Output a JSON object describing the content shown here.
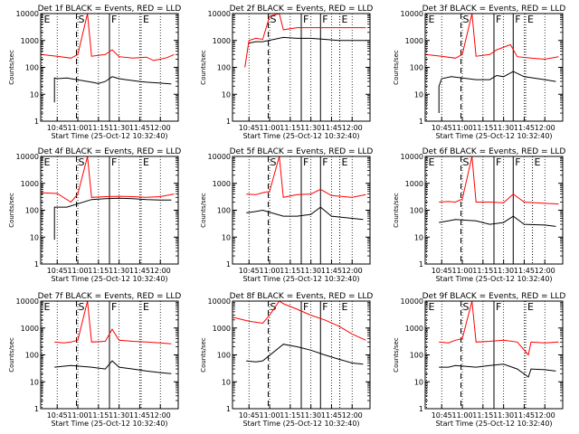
{
  "chart_data": [
    {
      "type": "line",
      "title": "Det 1f BLACK = Events, RED = LLD",
      "xlabel": "Start Time (25-Oct-12 10:32:40)",
      "ylabel": "Counts/sec",
      "yscale": "log",
      "ylim": [
        1,
        10000
      ],
      "xlim": [
        "10:33",
        "12:13"
      ],
      "xticks": [
        "10:45",
        "11:00",
        "11:15",
        "11:30",
        "11:45",
        "12:00"
      ],
      "yticks": [
        "1",
        "10",
        "100",
        "1000",
        "10000"
      ],
      "markers": [
        {
          "label": "E",
          "time": "10:34"
        },
        {
          "label": "S",
          "time": "10:59"
        },
        {
          "label": "F",
          "time": "11:23"
        },
        {
          "label": "E",
          "time": "11:46"
        }
      ],
      "series": [
        {
          "name": "RED",
          "color": "#ff0000",
          "x": [
            "10:33",
            "10:45",
            "10:55",
            "11:00",
            "11:07",
            "11:10",
            "11:20",
            "11:25",
            "11:30",
            "11:40",
            "11:50",
            "11:55",
            "12:00",
            "12:05",
            "12:10"
          ],
          "values": [
            300,
            260,
            220,
            300,
            10000,
            260,
            300,
            450,
            250,
            220,
            240,
            180,
            200,
            230,
            300
          ]
        },
        {
          "name": "BLACK",
          "color": "#000000",
          "x": [
            "10:43",
            "10:43",
            "10:45",
            "10:52",
            "11:10",
            "11:15",
            "11:20",
            "11:25",
            "11:30",
            "11:35",
            "11:45",
            "11:50",
            "12:00",
            "12:08"
          ],
          "values": [
            5,
            40,
            38,
            40,
            28,
            25,
            30,
            45,
            38,
            35,
            30,
            28,
            26,
            24
          ]
        }
      ]
    },
    {
      "type": "line",
      "title": "Det 2f BLACK = Events, RED = LLD",
      "xlabel": "Start Time (25-Oct-12 10:32:40)",
      "ylabel": "Counts/sec",
      "yscale": "log",
      "ylim": [
        1,
        10000
      ],
      "xlim": [
        "10:33",
        "12:13"
      ],
      "xticks": [
        "10:45",
        "11:00",
        "11:15",
        "11:30",
        "11:45",
        "12:00"
      ],
      "yticks": [
        "1",
        "10",
        "100",
        "1000",
        "10000"
      ],
      "markers": [
        {
          "label": "S",
          "time": "10:59"
        },
        {
          "label": "F",
          "time": "11:23"
        },
        {
          "label": "F",
          "time": "11:37"
        },
        {
          "label": "E",
          "time": "11:51"
        }
      ],
      "series": [
        {
          "name": "RED",
          "color": "#ff0000",
          "x": [
            "10:42",
            "10:45",
            "10:50",
            "10:55",
            "11:00",
            "11:07",
            "11:10",
            "11:20",
            "11:30",
            "11:45",
            "12:00",
            "12:10"
          ],
          "values": [
            100,
            1000,
            1200,
            1100,
            8000,
            10000,
            2500,
            3000,
            3000,
            3000,
            3000,
            3000
          ]
        },
        {
          "name": "BLACK",
          "color": "#000000",
          "x": [
            "10:45",
            "10:50",
            "10:55",
            "11:10",
            "11:20",
            "11:30",
            "11:40",
            "11:50",
            "12:00",
            "12:10"
          ],
          "values": [
            800,
            900,
            900,
            1300,
            1200,
            1200,
            1100,
            1000,
            1000,
            1000
          ]
        }
      ]
    },
    {
      "type": "line",
      "title": "Det 3f BLACK = Events, RED = LLD",
      "xlabel": "Start Time (25-Oct-12 10:32:40)",
      "ylabel": "Counts/sec",
      "yscale": "log",
      "ylim": [
        1,
        10000
      ],
      "xlim": [
        "10:33",
        "12:13"
      ],
      "xticks": [
        "10:45",
        "11:00",
        "11:15",
        "11:30",
        "11:45",
        "12:00"
      ],
      "yticks": [
        "1",
        "10",
        "100",
        "1000",
        "10000"
      ],
      "markers": [
        {
          "label": "E",
          "time": "10:34"
        },
        {
          "label": "S",
          "time": "10:59"
        },
        {
          "label": "F",
          "time": "11:23"
        },
        {
          "label": "F",
          "time": "11:37"
        },
        {
          "label": "E",
          "time": "11:46"
        }
      ],
      "series": [
        {
          "name": "RED",
          "color": "#ff0000",
          "x": [
            "10:33",
            "10:45",
            "10:55",
            "11:00",
            "11:07",
            "11:10",
            "11:20",
            "11:25",
            "11:35",
            "11:40",
            "11:50",
            "12:00",
            "12:10"
          ],
          "values": [
            300,
            260,
            220,
            300,
            10000,
            260,
            300,
            450,
            700,
            250,
            220,
            200,
            250
          ]
        },
        {
          "name": "BLACK",
          "color": "#000000",
          "x": [
            "10:43",
            "10:43",
            "10:45",
            "10:52",
            "11:10",
            "11:20",
            "11:25",
            "11:30",
            "11:37",
            "11:45",
            "12:00",
            "12:08"
          ],
          "values": [
            2,
            20,
            38,
            45,
            35,
            35,
            50,
            45,
            70,
            45,
            35,
            30
          ]
        }
      ]
    },
    {
      "type": "line",
      "title": "Det 4f BLACK = Events, RED = LLD",
      "xlabel": "Start Time (25-Oct-12 10:32:40)",
      "ylabel": "Counts/sec",
      "yscale": "log",
      "ylim": [
        1,
        10000
      ],
      "xlim": [
        "10:33",
        "12:13"
      ],
      "xticks": [
        "10:45",
        "11:00",
        "11:15",
        "11:30",
        "11:45",
        "12:00"
      ],
      "yticks": [
        "1",
        "10",
        "100",
        "1000",
        "10000"
      ],
      "markers": [
        {
          "label": "E",
          "time": "10:34"
        },
        {
          "label": "S",
          "time": "10:59"
        },
        {
          "label": "F",
          "time": "11:23"
        },
        {
          "label": "E",
          "time": "11:46"
        }
      ],
      "series": [
        {
          "name": "RED",
          "color": "#ff0000",
          "x": [
            "10:33",
            "10:45",
            "10:55",
            "11:00",
            "11:07",
            "11:10",
            "11:20",
            "11:30",
            "11:40",
            "11:50",
            "12:00",
            "12:10"
          ],
          "values": [
            450,
            420,
            200,
            400,
            10000,
            300,
            320,
            330,
            320,
            300,
            320,
            400
          ]
        },
        {
          "name": "BLACK",
          "color": "#000000",
          "x": [
            "10:43",
            "10:43",
            "10:45",
            "10:52",
            "11:10",
            "11:20",
            "11:30",
            "11:40",
            "11:50",
            "12:00",
            "12:08"
          ],
          "values": [
            8,
            130,
            130,
            130,
            250,
            270,
            280,
            270,
            250,
            240,
            240
          ]
        }
      ]
    },
    {
      "type": "line",
      "title": "Det 5f BLACK = Events, RED = LLD",
      "xlabel": "Start Time (25-Oct-12 10:32:40)",
      "ylabel": "Counts/sec",
      "yscale": "log",
      "ylim": [
        1,
        10000
      ],
      "xlim": [
        "10:33",
        "12:13"
      ],
      "xticks": [
        "10:45",
        "11:00",
        "11:15",
        "11:30",
        "11:45",
        "12:00"
      ],
      "yticks": [
        "1",
        "10",
        "100",
        "1000",
        "10000"
      ],
      "markers": [
        {
          "label": "S",
          "time": "10:59"
        },
        {
          "label": "F",
          "time": "11:23"
        },
        {
          "label": "F",
          "time": "11:37"
        },
        {
          "label": "E",
          "time": "11:51"
        }
      ],
      "series": [
        {
          "name": "RED",
          "color": "#ff0000",
          "x": [
            "10:43",
            "10:50",
            "10:55",
            "11:00",
            "11:07",
            "11:10",
            "11:20",
            "11:30",
            "11:37",
            "11:45",
            "12:00",
            "12:10"
          ],
          "values": [
            400,
            380,
            450,
            500,
            10000,
            300,
            380,
            400,
            600,
            350,
            300,
            380
          ]
        },
        {
          "name": "BLACK",
          "color": "#000000",
          "x": [
            "10:43",
            "10:50",
            "10:55",
            "11:10",
            "11:20",
            "11:30",
            "11:37",
            "11:45",
            "12:00",
            "12:08"
          ],
          "values": [
            80,
            90,
            100,
            60,
            60,
            70,
            130,
            60,
            50,
            45
          ]
        }
      ]
    },
    {
      "type": "line",
      "title": "Det 6f BLACK = Events, RED = LLD",
      "xlabel": "Start Time (25-Oct-12 10:32:40)",
      "ylabel": "Counts/sec",
      "yscale": "log",
      "ylim": [
        1,
        10000
      ],
      "xlim": [
        "10:33",
        "12:13"
      ],
      "xticks": [
        "10:45",
        "11:00",
        "11:15",
        "11:30",
        "11:45",
        "12:00"
      ],
      "yticks": [
        "1",
        "10",
        "100",
        "1000",
        "10000"
      ],
      "markers": [
        {
          "label": "E",
          "time": "10:34"
        },
        {
          "label": "S",
          "time": "10:59"
        },
        {
          "label": "F",
          "time": "11:23"
        },
        {
          "label": "F",
          "time": "11:37"
        },
        {
          "label": "E",
          "time": "11:51"
        }
      ],
      "series": [
        {
          "name": "RED",
          "color": "#ff0000",
          "x": [
            "10:43",
            "10:50",
            "10:55",
            "11:00",
            "11:07",
            "11:10",
            "11:20",
            "11:30",
            "11:37",
            "11:45",
            "12:00",
            "12:10"
          ],
          "values": [
            200,
            210,
            200,
            260,
            10000,
            200,
            200,
            190,
            400,
            200,
            180,
            170
          ]
        },
        {
          "name": "BLACK",
          "color": "#000000",
          "x": [
            "10:43",
            "10:50",
            "10:55",
            "11:10",
            "11:20",
            "11:30",
            "11:37",
            "11:45",
            "12:00",
            "12:08"
          ],
          "values": [
            35,
            40,
            45,
            40,
            30,
            35,
            60,
            30,
            28,
            25
          ]
        }
      ]
    },
    {
      "type": "line",
      "title": "Det 7f BLACK = Events, RED = LLD",
      "xlabel": "Start Time (25-Oct-12 10:32:40)",
      "ylabel": "Counts/sec",
      "yscale": "log",
      "ylim": [
        1,
        10000
      ],
      "xlim": [
        "10:33",
        "12:13"
      ],
      "xticks": [
        "10:45",
        "11:00",
        "11:15",
        "11:30",
        "11:45",
        "12:00"
      ],
      "yticks": [
        "1",
        "10",
        "100",
        "1000",
        "10000"
      ],
      "markers": [
        {
          "label": "E",
          "time": "10:34"
        },
        {
          "label": "S",
          "time": "10:59"
        },
        {
          "label": "F",
          "time": "11:23"
        },
        {
          "label": "E",
          "time": "11:46"
        }
      ],
      "series": [
        {
          "name": "RED",
          "color": "#ff0000",
          "x": [
            "10:43",
            "10:50",
            "10:55",
            "11:00",
            "11:07",
            "11:10",
            "11:20",
            "11:25",
            "11:30",
            "11:40",
            "11:50",
            "12:00",
            "12:08"
          ],
          "values": [
            300,
            280,
            300,
            350,
            10000,
            300,
            320,
            900,
            350,
            320,
            300,
            280,
            260
          ]
        },
        {
          "name": "BLACK",
          "color": "#000000",
          "x": [
            "10:43",
            "10:50",
            "10:55",
            "11:10",
            "11:20",
            "11:25",
            "11:30",
            "11:40",
            "11:50",
            "12:00",
            "12:08"
          ],
          "values": [
            35,
            38,
            40,
            35,
            30,
            60,
            35,
            30,
            25,
            22,
            20
          ]
        }
      ]
    },
    {
      "type": "line",
      "title": "Det 8f BLACK = Events, RED = LLD",
      "xlabel": "Start Time (25-Oct-12 10:32:40)",
      "ylabel": "Counts/sec",
      "yscale": "log",
      "ylim": [
        1,
        10000
      ],
      "xlim": [
        "10:33",
        "12:13"
      ],
      "xticks": [
        "10:45",
        "11:00",
        "11:15",
        "11:30",
        "11:45",
        "12:00"
      ],
      "yticks": [
        "1",
        "10",
        "100",
        "1000",
        "10000"
      ],
      "markers": [
        {
          "label": "S",
          "time": "10:59"
        },
        {
          "label": "F",
          "time": "11:23"
        },
        {
          "label": "F",
          "time": "11:37"
        },
        {
          "label": "E",
          "time": "11:51"
        }
      ],
      "series": [
        {
          "name": "RED",
          "color": "#ff0000",
          "x": [
            "10:33",
            "10:45",
            "10:55",
            "11:00",
            "11:07",
            "11:10",
            "11:20",
            "11:30",
            "11:40",
            "11:50",
            "12:00",
            "12:10"
          ],
          "values": [
            2500,
            1800,
            1500,
            3000,
            10000,
            8000,
            5000,
            3000,
            2000,
            1200,
            600,
            350
          ]
        },
        {
          "name": "BLACK",
          "color": "#000000",
          "x": [
            "10:43",
            "10:50",
            "10:55",
            "11:10",
            "11:20",
            "11:30",
            "11:40",
            "11:50",
            "12:00",
            "12:08"
          ],
          "values": [
            60,
            55,
            60,
            250,
            200,
            150,
            100,
            70,
            50,
            45
          ]
        }
      ]
    },
    {
      "type": "line",
      "title": "Det 9f BLACK = Events, RED = LLD",
      "xlabel": "Start Time (25-Oct-12 10:32:40)",
      "ylabel": "Counts/sec",
      "yscale": "log",
      "ylim": [
        1,
        10000
      ],
      "xlim": [
        "10:33",
        "12:13"
      ],
      "xticks": [
        "10:45",
        "11:00",
        "11:15",
        "11:30",
        "11:45",
        "12:00"
      ],
      "yticks": [
        "1",
        "10",
        "100",
        "1000",
        "10000"
      ],
      "markers": [
        {
          "label": "E",
          "time": "10:34"
        },
        {
          "label": "S",
          "time": "10:59"
        },
        {
          "label": "F",
          "time": "11:23"
        },
        {
          "label": "E",
          "time": "11:46"
        }
      ],
      "series": [
        {
          "name": "RED",
          "color": "#ff0000",
          "x": [
            "10:43",
            "10:50",
            "10:55",
            "11:00",
            "11:07",
            "11:10",
            "11:20",
            "11:30",
            "11:40",
            "11:48",
            "11:50",
            "12:00",
            "12:10"
          ],
          "values": [
            300,
            280,
            350,
            400,
            10000,
            300,
            320,
            350,
            300,
            100,
            300,
            280,
            300
          ]
        },
        {
          "name": "BLACK",
          "color": "#000000",
          "x": [
            "10:43",
            "10:50",
            "10:55",
            "11:10",
            "11:20",
            "11:30",
            "11:40",
            "11:48",
            "11:50",
            "12:00",
            "12:08"
          ],
          "values": [
            35,
            35,
            40,
            35,
            40,
            45,
            30,
            15,
            30,
            28,
            25
          ]
        }
      ]
    }
  ]
}
